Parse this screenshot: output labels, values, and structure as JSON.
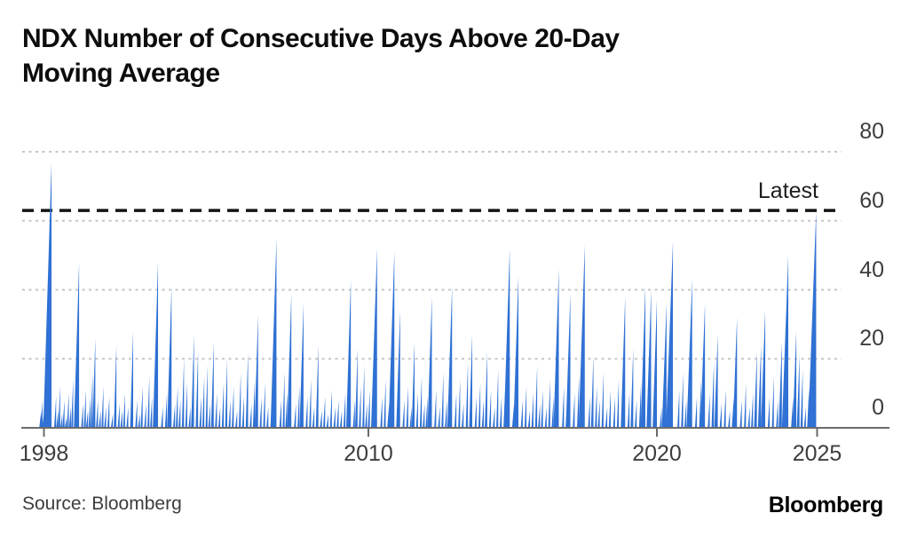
{
  "title": {
    "line1": "NDX Number of Consecutive Days Above 20-Day",
    "line2": "Moving Average"
  },
  "source_text": "Source: Bloomberg",
  "logo_text": "Bloomberg",
  "colors": {
    "bar": "#2f71d4",
    "latest_line": "#141414",
    "grid": "#c5c5c5",
    "axis": "#6b6b6b",
    "tick_text": "#3d3d3d",
    "title_text": "#0d0d0d"
  },
  "chart_data": {
    "type": "bar",
    "title": "NDX Number of Consecutive Days Above 20-Day Moving Average",
    "xlabel": "",
    "ylabel": "",
    "series_name": "Consecutive days above 20-day moving average",
    "ylim": [
      0,
      80
    ],
    "yticks": [
      0,
      20,
      40,
      60,
      80
    ],
    "xticks": [
      1998,
      2010,
      2020,
      2025
    ],
    "xrange": [
      1997.9,
      2025.05
    ],
    "grid": "horizontal dotted, labels on right side",
    "legend": "none",
    "annotation": {
      "label": "Latest",
      "value": 63,
      "style": "black dashed horizontal line"
    },
    "points": [
      [
        1997.9,
        5
      ],
      [
        1997.95,
        8
      ],
      [
        1998.0,
        4
      ],
      [
        1998.07,
        6
      ],
      [
        1998.28,
        77
      ],
      [
        1998.45,
        9
      ],
      [
        1998.53,
        5
      ],
      [
        1998.6,
        12
      ],
      [
        1998.68,
        4
      ],
      [
        1998.76,
        8
      ],
      [
        1998.84,
        3
      ],
      [
        1998.92,
        10
      ],
      [
        1999.0,
        6
      ],
      [
        1999.08,
        14
      ],
      [
        1999.3,
        48
      ],
      [
        1999.45,
        7
      ],
      [
        1999.55,
        11
      ],
      [
        1999.63,
        5
      ],
      [
        1999.72,
        9
      ],
      [
        1999.8,
        16
      ],
      [
        1999.9,
        26
      ],
      [
        2000.0,
        8
      ],
      [
        2000.1,
        5
      ],
      [
        2000.2,
        12
      ],
      [
        2000.3,
        6
      ],
      [
        2000.42,
        9
      ],
      [
        2000.55,
        4
      ],
      [
        2000.68,
        24
      ],
      [
        2000.8,
        7
      ],
      [
        2000.9,
        5
      ],
      [
        2001.0,
        10
      ],
      [
        2001.12,
        6
      ],
      [
        2001.3,
        28
      ],
      [
        2001.45,
        8
      ],
      [
        2001.55,
        4
      ],
      [
        2001.65,
        12
      ],
      [
        2001.78,
        7
      ],
      [
        2001.9,
        15
      ],
      [
        2002.0,
        9
      ],
      [
        2002.1,
        5
      ],
      [
        2002.22,
        48
      ],
      [
        2002.4,
        6
      ],
      [
        2002.55,
        10
      ],
      [
        2002.72,
        41
      ],
      [
        2002.85,
        7
      ],
      [
        2002.95,
        12
      ],
      [
        2003.05,
        8
      ],
      [
        2003.18,
        20
      ],
      [
        2003.3,
        13
      ],
      [
        2003.42,
        6
      ],
      [
        2003.55,
        27
      ],
      [
        2003.7,
        22
      ],
      [
        2003.82,
        9
      ],
      [
        2003.93,
        15
      ],
      [
        2004.05,
        18
      ],
      [
        2004.15,
        7
      ],
      [
        2004.28,
        25
      ],
      [
        2004.4,
        10
      ],
      [
        2004.52,
        6
      ],
      [
        2004.65,
        13
      ],
      [
        2004.78,
        20
      ],
      [
        2004.9,
        8
      ],
      [
        2005.02,
        12
      ],
      [
        2005.15,
        5
      ],
      [
        2005.28,
        16
      ],
      [
        2005.4,
        9
      ],
      [
        2005.55,
        22
      ],
      [
        2005.68,
        7
      ],
      [
        2005.8,
        14
      ],
      [
        2005.92,
        33
      ],
      [
        2006.05,
        9
      ],
      [
        2006.18,
        13
      ],
      [
        2006.3,
        6
      ],
      [
        2006.45,
        11
      ],
      [
        2006.6,
        55
      ],
      [
        2006.78,
        8
      ],
      [
        2006.9,
        16
      ],
      [
        2007.0,
        10
      ],
      [
        2007.15,
        39
      ],
      [
        2007.32,
        7
      ],
      [
        2007.45,
        12
      ],
      [
        2007.6,
        36
      ],
      [
        2007.75,
        9
      ],
      [
        2007.88,
        14
      ],
      [
        2008.0,
        6
      ],
      [
        2008.15,
        24
      ],
      [
        2008.28,
        5
      ],
      [
        2008.4,
        9
      ],
      [
        2008.52,
        4
      ],
      [
        2008.65,
        11
      ],
      [
        2008.78,
        6
      ],
      [
        2008.9,
        8
      ],
      [
        2009.02,
        5
      ],
      [
        2009.15,
        10
      ],
      [
        2009.35,
        43
      ],
      [
        2009.5,
        8
      ],
      [
        2009.6,
        23
      ],
      [
        2009.72,
        12
      ],
      [
        2009.85,
        18
      ],
      [
        2009.95,
        7
      ],
      [
        2010.05,
        11
      ],
      [
        2010.18,
        6
      ],
      [
        2010.3,
        52
      ],
      [
        2010.48,
        9
      ],
      [
        2010.6,
        14
      ],
      [
        2010.72,
        7
      ],
      [
        2010.9,
        51
      ],
      [
        2011.1,
        34
      ],
      [
        2011.25,
        8
      ],
      [
        2011.38,
        12
      ],
      [
        2011.5,
        6
      ],
      [
        2011.6,
        25
      ],
      [
        2011.72,
        10
      ],
      [
        2011.85,
        15
      ],
      [
        2011.95,
        7
      ],
      [
        2012.05,
        9
      ],
      [
        2012.2,
        38
      ],
      [
        2012.35,
        11
      ],
      [
        2012.48,
        6
      ],
      [
        2012.6,
        16
      ],
      [
        2012.72,
        8
      ],
      [
        2012.9,
        41
      ],
      [
        2013.05,
        10
      ],
      [
        2013.18,
        14
      ],
      [
        2013.3,
        7
      ],
      [
        2013.45,
        19
      ],
      [
        2013.6,
        27
      ],
      [
        2013.75,
        9
      ],
      [
        2013.88,
        13
      ],
      [
        2014.0,
        8
      ],
      [
        2014.12,
        22
      ],
      [
        2014.25,
        11
      ],
      [
        2014.38,
        6
      ],
      [
        2014.5,
        17
      ],
      [
        2014.62,
        9
      ],
      [
        2014.75,
        13
      ],
      [
        2014.9,
        52
      ],
      [
        2015.05,
        7
      ],
      [
        2015.2,
        44
      ],
      [
        2015.35,
        8
      ],
      [
        2015.48,
        12
      ],
      [
        2015.6,
        5
      ],
      [
        2015.72,
        10
      ],
      [
        2015.85,
        18
      ],
      [
        2015.95,
        7
      ],
      [
        2016.05,
        11
      ],
      [
        2016.18,
        6
      ],
      [
        2016.3,
        14
      ],
      [
        2016.42,
        9
      ],
      [
        2016.6,
        46
      ],
      [
        2016.78,
        12
      ],
      [
        2016.9,
        8
      ],
      [
        2017.0,
        39
      ],
      [
        2017.15,
        10
      ],
      [
        2017.3,
        15
      ],
      [
        2017.5,
        53
      ],
      [
        2017.68,
        9
      ],
      [
        2017.8,
        21
      ],
      [
        2017.92,
        12
      ],
      [
        2018.02,
        8
      ],
      [
        2018.15,
        16
      ],
      [
        2018.28,
        6
      ],
      [
        2018.4,
        11
      ],
      [
        2018.55,
        9
      ],
      [
        2018.68,
        14
      ],
      [
        2018.9,
        38
      ],
      [
        2019.05,
        10
      ],
      [
        2019.18,
        23
      ],
      [
        2019.3,
        8
      ],
      [
        2019.45,
        13
      ],
      [
        2019.6,
        41
      ],
      [
        2019.8,
        40
      ],
      [
        2019.95,
        9
      ],
      [
        2020.0,
        37
      ],
      [
        2020.15,
        6
      ],
      [
        2020.3,
        36
      ],
      [
        2020.5,
        54
      ],
      [
        2020.7,
        11
      ],
      [
        2020.82,
        16
      ],
      [
        2020.92,
        8
      ],
      [
        2021.1,
        43
      ],
      [
        2021.25,
        9
      ],
      [
        2021.38,
        14
      ],
      [
        2021.5,
        36
      ],
      [
        2021.65,
        10
      ],
      [
        2021.78,
        19
      ],
      [
        2021.9,
        27
      ],
      [
        2022.02,
        7
      ],
      [
        2022.15,
        11
      ],
      [
        2022.28,
        5
      ],
      [
        2022.4,
        9
      ],
      [
        2022.5,
        32
      ],
      [
        2022.65,
        8
      ],
      [
        2022.78,
        13
      ],
      [
        2022.9,
        6
      ],
      [
        2023.0,
        10
      ],
      [
        2023.12,
        22
      ],
      [
        2023.25,
        24
      ],
      [
        2023.38,
        34
      ],
      [
        2023.52,
        9
      ],
      [
        2023.65,
        15
      ],
      [
        2023.78,
        8
      ],
      [
        2023.9,
        25
      ],
      [
        2024.02,
        12
      ],
      [
        2024.1,
        50
      ],
      [
        2024.25,
        9
      ],
      [
        2024.35,
        28
      ],
      [
        2024.45,
        21
      ],
      [
        2024.55,
        17
      ],
      [
        2024.65,
        6
      ],
      [
        2024.75,
        12
      ],
      [
        2024.97,
        63
      ]
    ]
  }
}
